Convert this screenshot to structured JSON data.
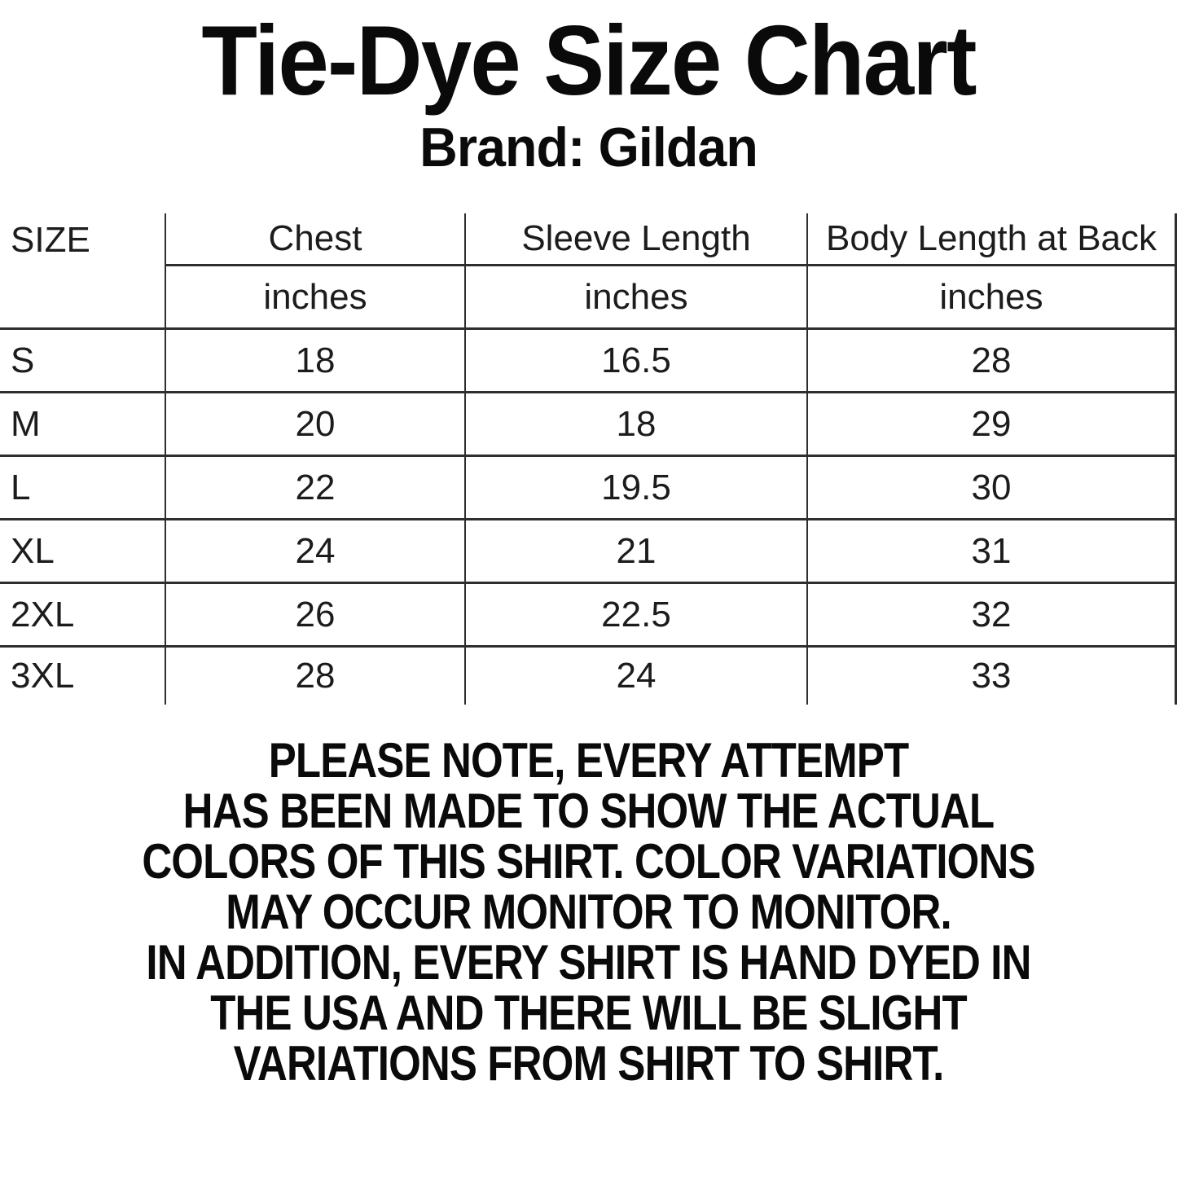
{
  "page": {
    "title": "Tie-Dye Size Chart",
    "subtitle": "Brand: Gildan"
  },
  "size_table": {
    "header": {
      "size": "SIZE",
      "chest": "Chest",
      "sleeve": "Sleeve Length",
      "body": "Body Length at Back"
    },
    "units": {
      "chest": "inches",
      "sleeve": "inches",
      "body": "inches"
    },
    "rows": [
      {
        "size": "S",
        "chest": "18",
        "sleeve": "16.5",
        "body": "28"
      },
      {
        "size": "M",
        "chest": "20",
        "sleeve": "18",
        "body": "29"
      },
      {
        "size": "L",
        "chest": "22",
        "sleeve": "19.5",
        "body": "30"
      },
      {
        "size": "XL",
        "chest": "24",
        "sleeve": "21",
        "body": "31"
      },
      {
        "size": "2XL",
        "chest": "26",
        "sleeve": "22.5",
        "body": "32"
      },
      {
        "size": "3XL",
        "chest": "28",
        "sleeve": "24",
        "body": "33"
      }
    ]
  },
  "note": {
    "lines": [
      "PLEASE NOTE, EVERY ATTEMPT",
      "HAS BEEN MADE TO SHOW THE ACTUAL",
      "COLORS OF THIS SHIRT. COLOR VARIATIONS",
      "MAY OCCUR MONITOR TO MONITOR.",
      "IN ADDITION, EVERY SHIRT IS HAND DYED IN",
      "THE USA AND THERE WILL BE SLIGHT",
      "VARIATIONS FROM SHIRT TO SHIRT."
    ]
  },
  "chart_data": {
    "type": "table",
    "title": "Tie-Dye Size Chart",
    "subtitle": "Brand: Gildan",
    "columns": [
      "SIZE",
      "Chest (inches)",
      "Sleeve Length (inches)",
      "Body Length at Back (inches)"
    ],
    "rows": [
      [
        "S",
        18,
        16.5,
        28
      ],
      [
        "M",
        20,
        18,
        29
      ],
      [
        "L",
        22,
        19.5,
        30
      ],
      [
        "XL",
        24,
        21,
        31
      ],
      [
        "2XL",
        26,
        22.5,
        32
      ],
      [
        "3XL",
        28,
        24,
        33
      ]
    ]
  },
  "colors": {
    "text": "#0a0a0a",
    "tabletext": "#1c1c1c",
    "line": "#2e2e2e",
    "background": "#ffffff"
  }
}
